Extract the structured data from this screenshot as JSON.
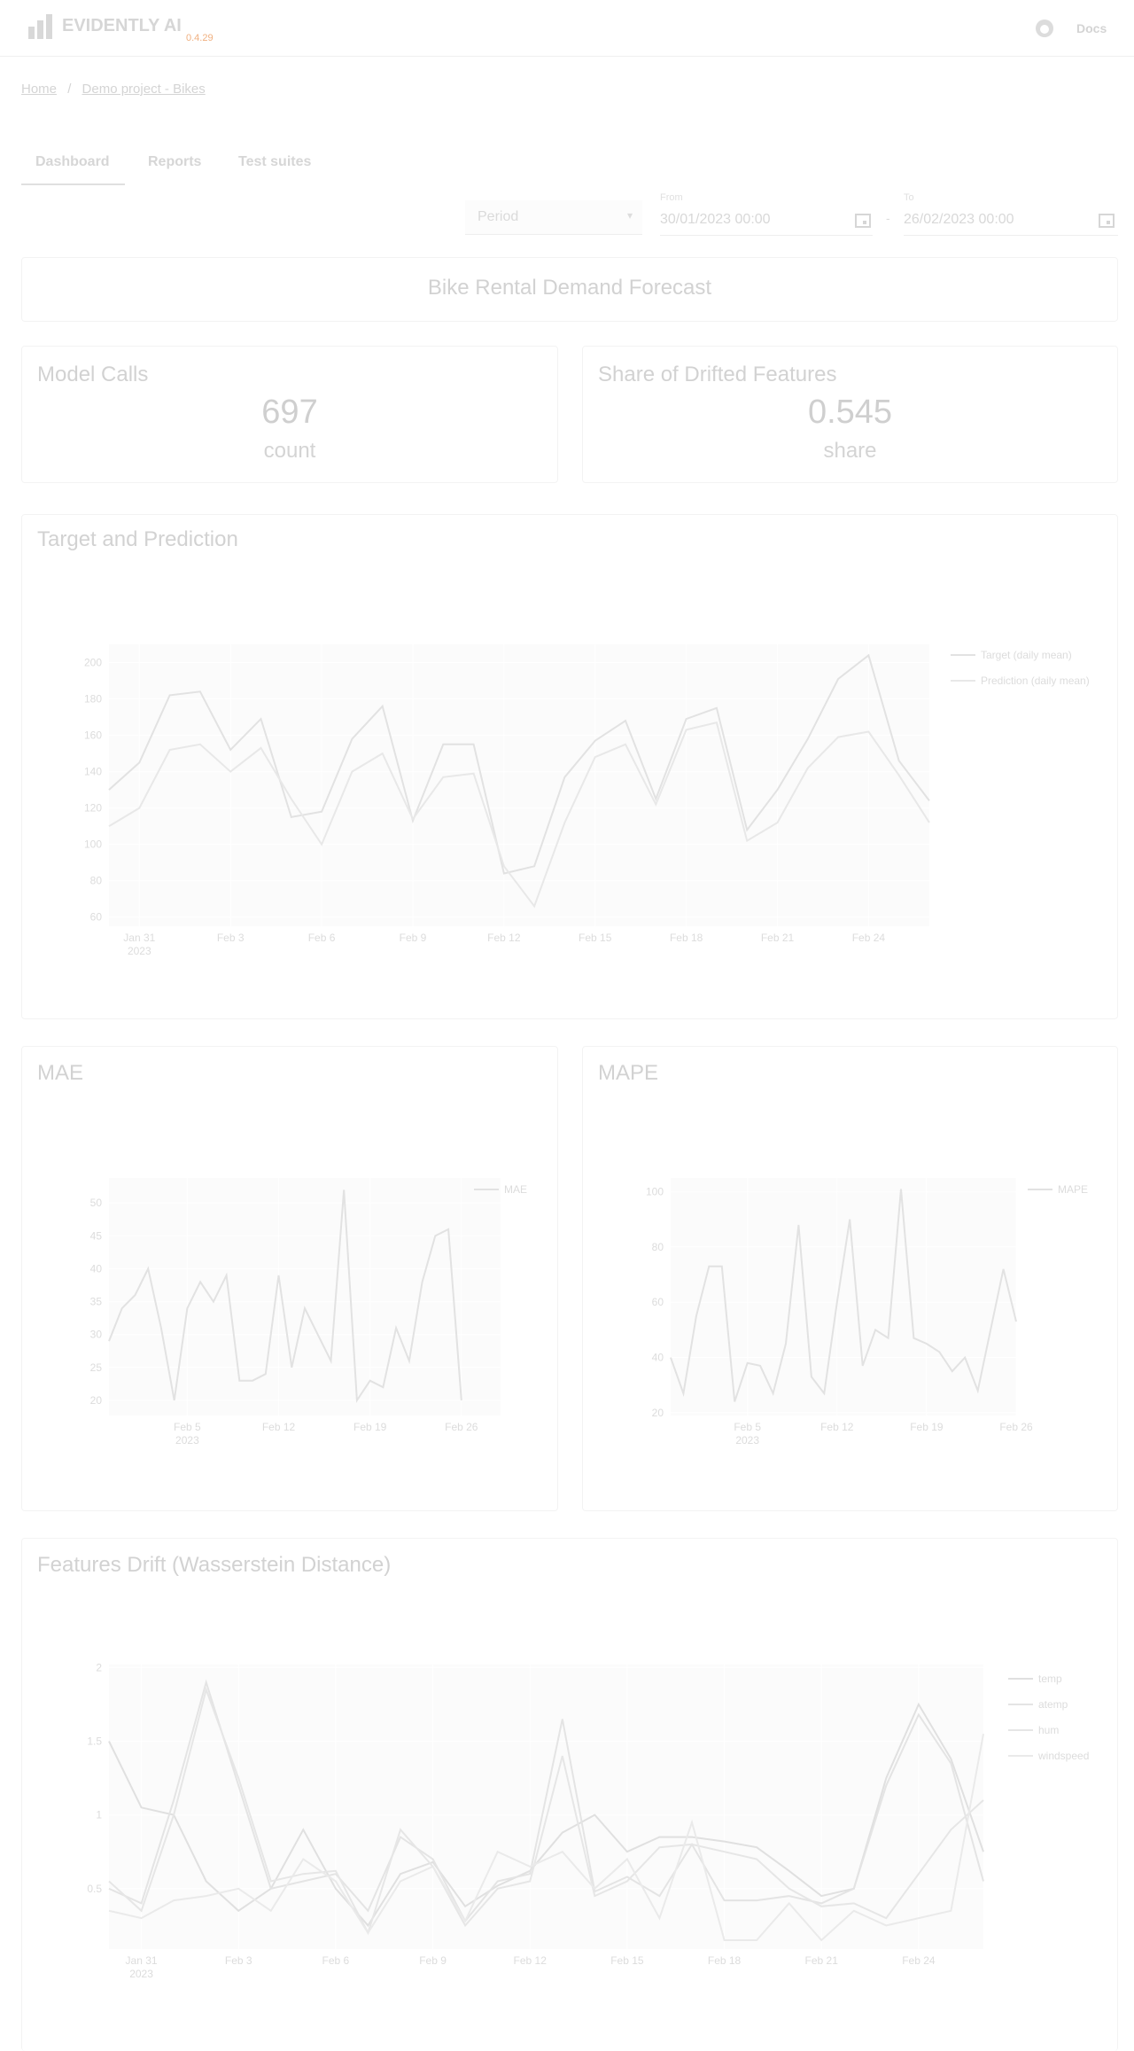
{
  "header": {
    "brand": "EVIDENTLY AI",
    "version": "0.4.29",
    "docs": "Docs"
  },
  "breadcrumbs": [
    "Home",
    "Demo project - Bikes"
  ],
  "tabs": [
    "Dashboard",
    "Reports",
    "Test suites"
  ],
  "filters": {
    "period": "Period",
    "from_label": "From",
    "from": "30/01/2023 00:00",
    "to_label": "To",
    "to": "26/02/2023 00:00"
  },
  "dashboard_title": "Bike Rental Demand Forecast",
  "counters": [
    {
      "title": "Model Calls",
      "value": 697,
      "label": "count"
    },
    {
      "title": "Share of Drifted Features",
      "value": 0.545,
      "label": "share"
    }
  ],
  "chart_data": [
    {
      "type": "line",
      "title": "Target and Prediction",
      "x": [
        "2023-01-30",
        "2023-01-31",
        "2023-02-01",
        "2023-02-02",
        "2023-02-03",
        "2023-02-04",
        "2023-02-05",
        "2023-02-06",
        "2023-02-07",
        "2023-02-08",
        "2023-02-09",
        "2023-02-10",
        "2023-02-11",
        "2023-02-12",
        "2023-02-13",
        "2023-02-14",
        "2023-02-15",
        "2023-02-16",
        "2023-02-17",
        "2023-02-18",
        "2023-02-19",
        "2023-02-20",
        "2023-02-21",
        "2023-02-22",
        "2023-02-23",
        "2023-02-24",
        "2023-02-25",
        "2023-02-26"
      ],
      "series": [
        {
          "name": "Target (daily mean)",
          "color": "#e2e2e2",
          "values": [
            130,
            145,
            182,
            184,
            152,
            169,
            115,
            118,
            158,
            176,
            113,
            155,
            155,
            84,
            88,
            137,
            157,
            168,
            125,
            169,
            175,
            108,
            130,
            158,
            191,
            204,
            146,
            124
          ]
        },
        {
          "name": "Prediction (daily mean)",
          "color": "#e8e8e8",
          "values": [
            110,
            120,
            152,
            155,
            140,
            153,
            125,
            100,
            140,
            150,
            114,
            137,
            139,
            88,
            66,
            112,
            148,
            155,
            122,
            163,
            167,
            102,
            112,
            142,
            159,
            162,
            138,
            112
          ]
        }
      ],
      "xlim": [
        "2023-01-30",
        "2023-02-26"
      ],
      "ylim": [
        55,
        210
      ],
      "xticks": [
        {
          "value": "2023-01-31",
          "label": "Jan 31"
        },
        {
          "value": "2023-02-03",
          "label": "Feb 3"
        },
        {
          "value": "2023-02-06",
          "label": "Feb 6"
        },
        {
          "value": "2023-02-09",
          "label": "Feb 9"
        },
        {
          "value": "2023-02-12",
          "label": "Feb 12"
        },
        {
          "value": "2023-02-15",
          "label": "Feb 15"
        },
        {
          "value": "2023-02-18",
          "label": "Feb 18"
        },
        {
          "value": "2023-02-21",
          "label": "Feb 21"
        },
        {
          "value": "2023-02-24",
          "label": "Feb 24"
        }
      ],
      "x_year": "2023",
      "yticks": [
        60,
        80,
        100,
        120,
        140,
        160,
        180,
        200
      ]
    },
    {
      "type": "line",
      "title": "MAE",
      "x": [
        "2023-01-30",
        "2023-01-31",
        "2023-02-01",
        "2023-02-02",
        "2023-02-03",
        "2023-02-04",
        "2023-02-05",
        "2023-02-06",
        "2023-02-07",
        "2023-02-08",
        "2023-02-09",
        "2023-02-10",
        "2023-02-11",
        "2023-02-12",
        "2023-02-13",
        "2023-02-14",
        "2023-02-15",
        "2023-02-16",
        "2023-02-17",
        "2023-02-18",
        "2023-02-19",
        "2023-02-20",
        "2023-02-21",
        "2023-02-22",
        "2023-02-23",
        "2023-02-24",
        "2023-02-25",
        "2023-02-26"
      ],
      "series": [
        {
          "name": "MAE",
          "color": "#e2e2e2",
          "values": [
            29,
            34,
            36,
            40,
            31,
            20,
            34,
            38,
            35,
            39,
            23,
            23,
            24,
            39,
            25,
            34,
            30,
            26,
            52,
            20,
            23,
            22,
            31,
            26,
            38,
            45,
            46,
            20
          ]
        }
      ],
      "xlim": [
        "2023-01-30",
        "2023-03-01"
      ],
      "ylim": [
        17.7,
        53.8
      ],
      "xticks": [
        {
          "value": "2023-02-05",
          "label": "Feb 5"
        },
        {
          "value": "2023-02-12",
          "label": "Feb 12"
        },
        {
          "value": "2023-02-19",
          "label": "Feb 19"
        },
        {
          "value": "2023-02-26",
          "label": "Feb 26"
        }
      ],
      "x_year": "2023",
      "yticks": [
        20,
        25,
        30,
        35,
        40,
        45,
        50
      ]
    },
    {
      "type": "line",
      "title": "MAPE",
      "x": [
        "2023-01-30",
        "2023-01-31",
        "2023-02-01",
        "2023-02-02",
        "2023-02-03",
        "2023-02-04",
        "2023-02-05",
        "2023-02-06",
        "2023-02-07",
        "2023-02-08",
        "2023-02-09",
        "2023-02-10",
        "2023-02-11",
        "2023-02-12",
        "2023-02-13",
        "2023-02-14",
        "2023-02-15",
        "2023-02-16",
        "2023-02-17",
        "2023-02-18",
        "2023-02-19",
        "2023-02-20",
        "2023-02-21",
        "2023-02-22",
        "2023-02-23",
        "2023-02-24",
        "2023-02-25",
        "2023-02-26"
      ],
      "series": [
        {
          "name": "MAPE",
          "color": "#e2e2e2",
          "values": [
            40,
            27,
            55,
            73,
            73,
            24,
            38,
            37,
            27,
            45,
            88,
            33,
            27,
            60,
            90,
            37,
            50,
            47,
            101,
            47,
            45,
            42,
            35,
            40,
            28,
            50,
            72,
            53
          ]
        }
      ],
      "xlim": [
        "2023-01-30",
        "2023-02-26"
      ],
      "ylim": [
        19,
        105
      ],
      "xticks": [
        {
          "value": "2023-02-05",
          "label": "Feb 5"
        },
        {
          "value": "2023-02-12",
          "label": "Feb 12"
        },
        {
          "value": "2023-02-19",
          "label": "Feb 19"
        },
        {
          "value": "2023-02-26",
          "label": "Feb 26"
        }
      ],
      "x_year": "2023",
      "yticks": [
        20,
        40,
        60,
        80,
        100
      ]
    },
    {
      "type": "line",
      "title": "Features Drift (Wasserstein Distance)",
      "x": [
        "2023-01-30",
        "2023-01-31",
        "2023-02-01",
        "2023-02-02",
        "2023-02-03",
        "2023-02-04",
        "2023-02-05",
        "2023-02-06",
        "2023-02-07",
        "2023-02-08",
        "2023-02-09",
        "2023-02-10",
        "2023-02-11",
        "2023-02-12",
        "2023-02-13",
        "2023-02-14",
        "2023-02-15",
        "2023-02-16",
        "2023-02-17",
        "2023-02-18",
        "2023-02-19",
        "2023-02-20",
        "2023-02-21",
        "2023-02-22",
        "2023-02-23",
        "2023-02-24",
        "2023-02-25",
        "2023-02-26"
      ],
      "series": [
        {
          "name": "temp",
          "color": "#e0e0e0",
          "values": [
            1.5,
            1.05,
            1.0,
            0.55,
            0.35,
            0.5,
            0.9,
            0.5,
            0.25,
            0.6,
            0.68,
            0.38,
            0.52,
            0.62,
            0.88,
            1.0,
            0.75,
            0.85,
            0.85,
            0.82,
            0.78,
            0.62,
            0.45,
            0.5,
            1.25,
            1.75,
            1.38,
            0.75
          ]
        },
        {
          "name": "atemp",
          "color": "#e4e4e4",
          "values": [
            0.5,
            0.4,
            1.1,
            1.9,
            1.2,
            0.5,
            0.55,
            0.6,
            0.35,
            0.85,
            0.7,
            0.28,
            0.55,
            0.6,
            1.65,
            0.48,
            0.58,
            0.45,
            0.8,
            0.42,
            0.42,
            0.45,
            0.4,
            0.5,
            1.2,
            1.68,
            1.35,
            0.55
          ]
        },
        {
          "name": "hum",
          "color": "#e6e6e6",
          "values": [
            0.55,
            0.35,
            1.0,
            1.85,
            1.25,
            0.55,
            0.6,
            0.62,
            0.2,
            0.9,
            0.65,
            0.25,
            0.5,
            0.55,
            1.4,
            0.45,
            0.55,
            0.78,
            0.8,
            0.75,
            0.7,
            0.5,
            0.38,
            0.4,
            0.3,
            0.6,
            0.9,
            1.1
          ]
        },
        {
          "name": "windspeed",
          "color": "#eaeaea",
          "values": [
            0.35,
            0.3,
            0.42,
            0.45,
            0.5,
            0.35,
            0.7,
            0.55,
            0.2,
            0.55,
            0.65,
            0.28,
            0.75,
            0.65,
            0.75,
            0.5,
            0.7,
            0.3,
            0.95,
            0.15,
            0.15,
            0.4,
            0.15,
            0.35,
            0.25,
            0.3,
            0.35,
            1.55
          ]
        }
      ],
      "xlim": [
        "2023-01-30",
        "2023-02-26"
      ],
      "ylim": [
        0.09,
        2.02
      ],
      "xticks": [
        {
          "value": "2023-01-31",
          "label": "Jan 31"
        },
        {
          "value": "2023-02-03",
          "label": "Feb 3"
        },
        {
          "value": "2023-02-06",
          "label": "Feb 6"
        },
        {
          "value": "2023-02-09",
          "label": "Feb 9"
        },
        {
          "value": "2023-02-12",
          "label": "Feb 12"
        },
        {
          "value": "2023-02-15",
          "label": "Feb 15"
        },
        {
          "value": "2023-02-18",
          "label": "Feb 18"
        },
        {
          "value": "2023-02-21",
          "label": "Feb 21"
        },
        {
          "value": "2023-02-24",
          "label": "Feb 24"
        }
      ],
      "x_year": "2023",
      "yticks": [
        0.5,
        1,
        1.5,
        2
      ]
    }
  ]
}
